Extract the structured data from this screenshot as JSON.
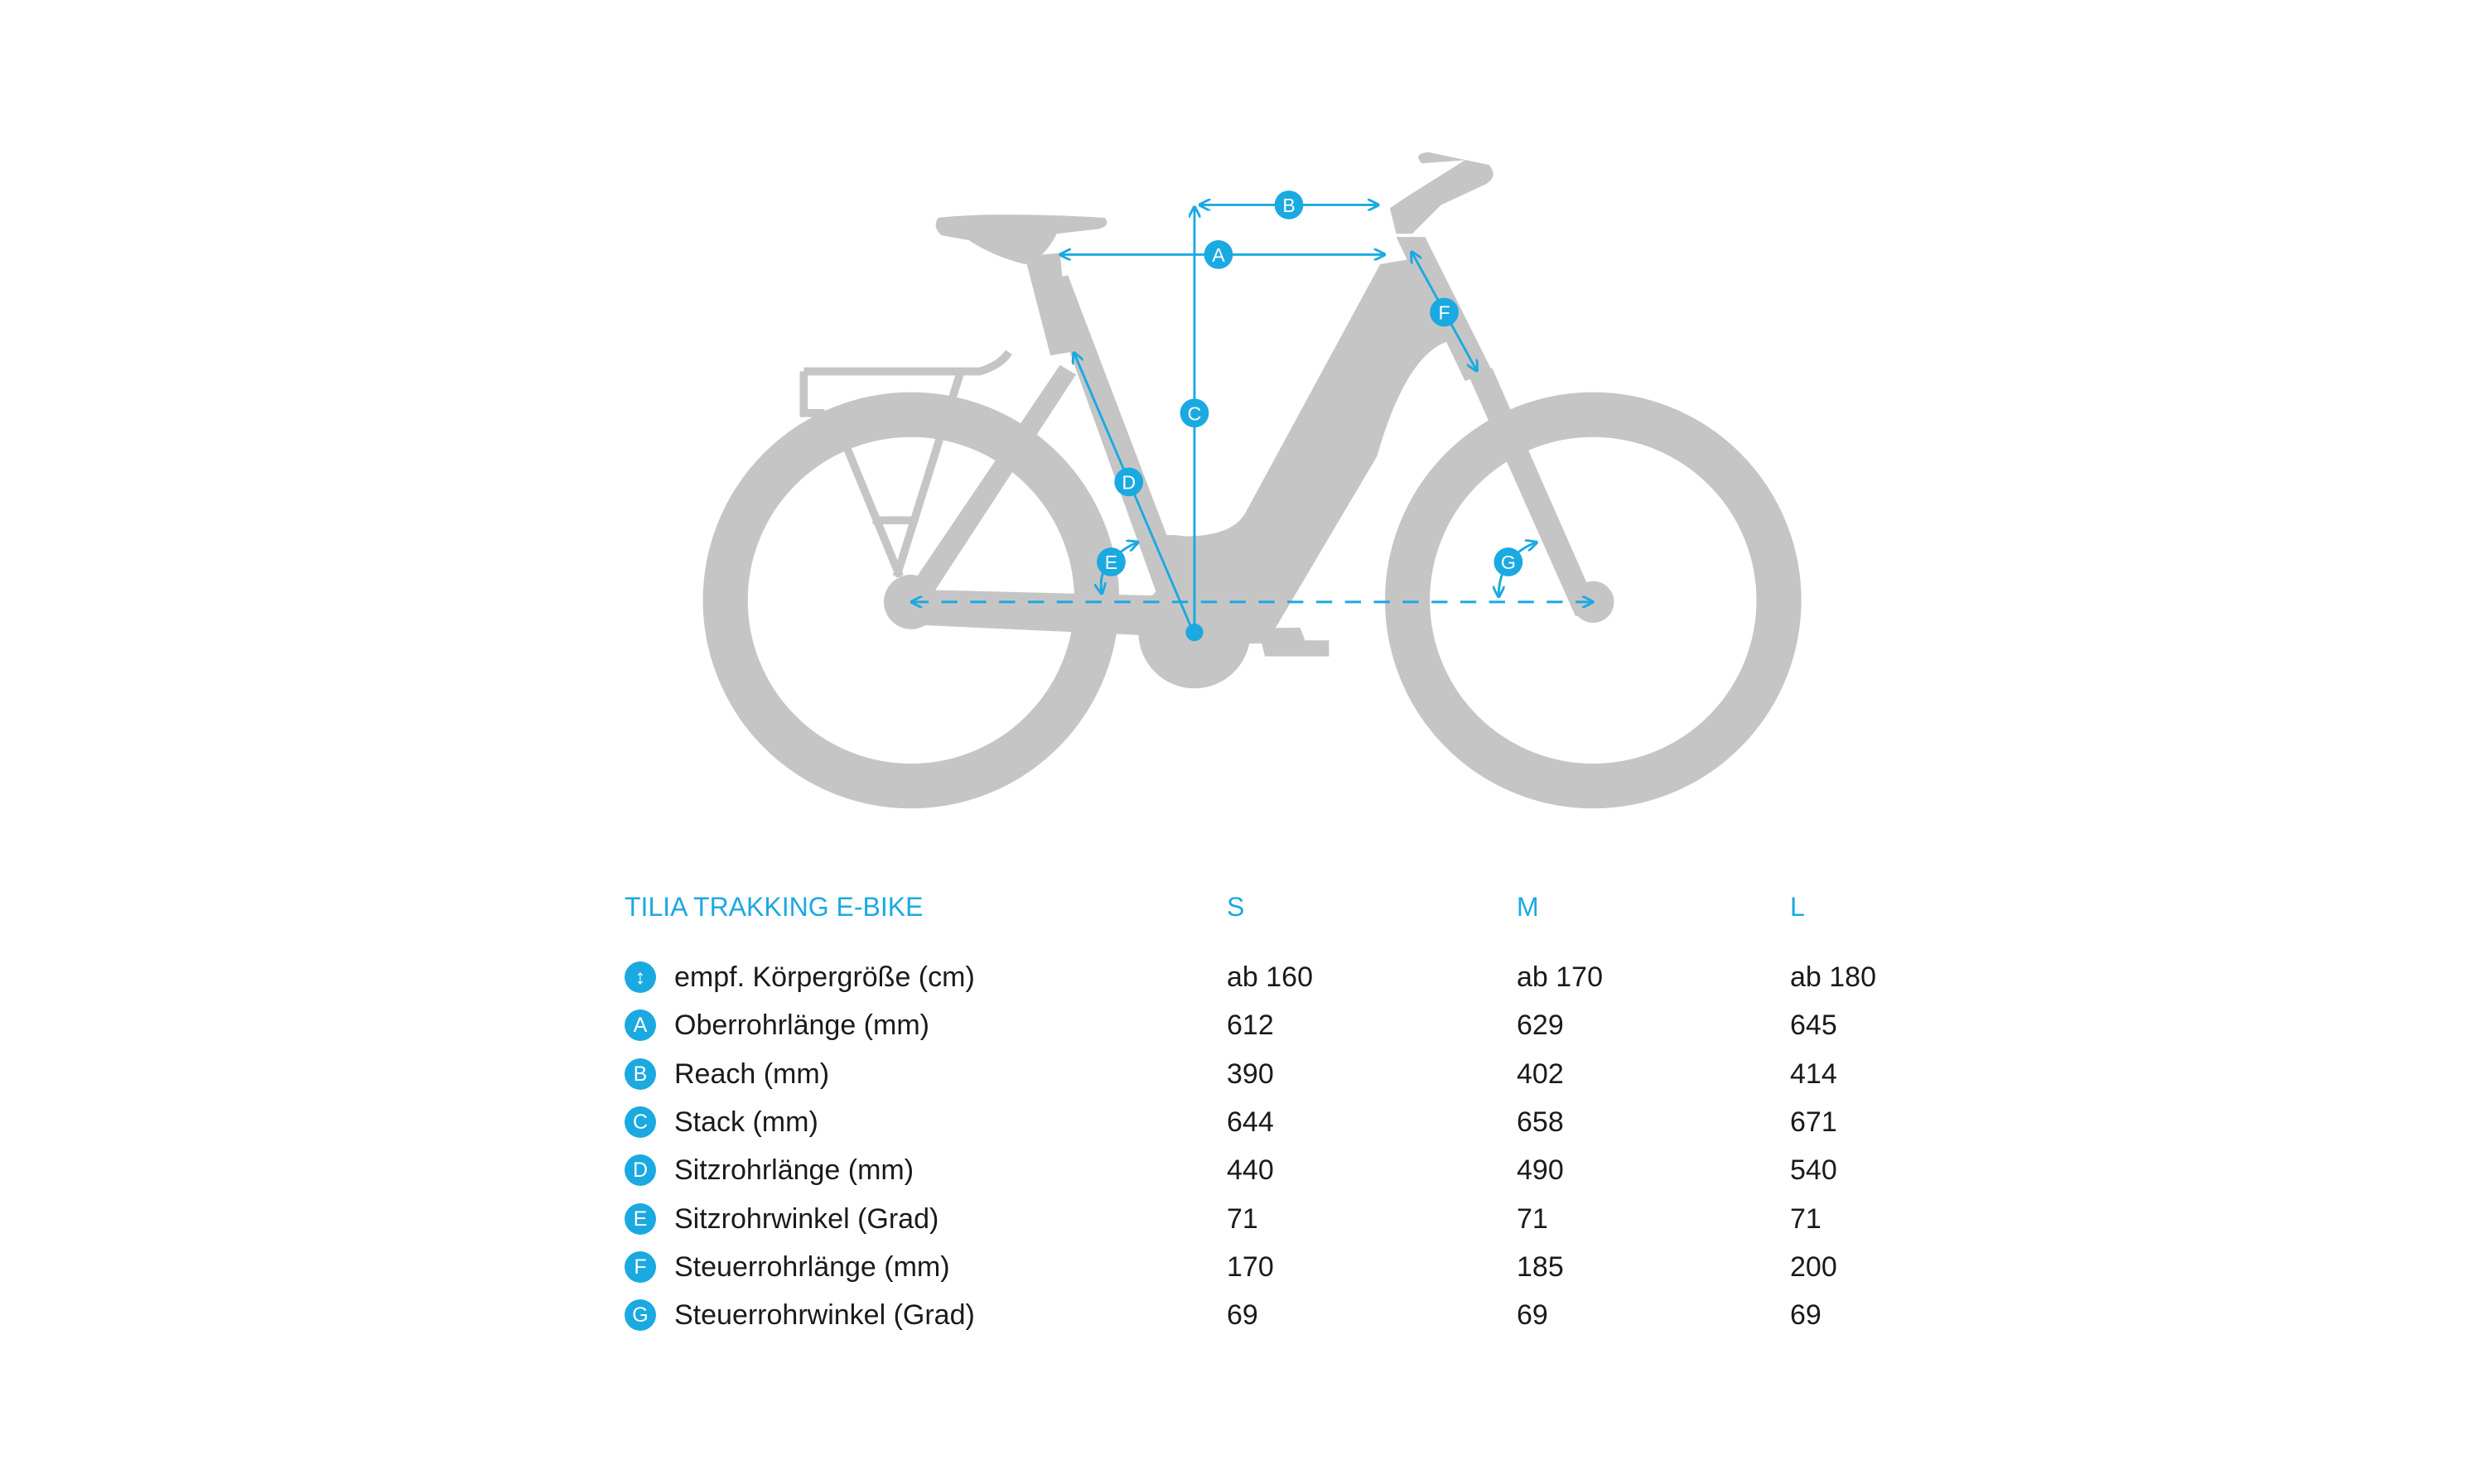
{
  "diagram": {
    "labels": [
      "A",
      "B",
      "C",
      "D",
      "E",
      "F",
      "G"
    ],
    "accent_color": "#1ba9e1",
    "frame_color": "#c6c5c5"
  },
  "table": {
    "title": "TILIA TRAKKING E-BIKE",
    "sizes": [
      "S",
      "M",
      "L"
    ],
    "rows": [
      {
        "badge": "↕",
        "icon": "height-arrow-icon",
        "label": "empf. Körpergröße (cm)",
        "values": [
          "ab 160",
          "ab 170",
          "ab 180"
        ]
      },
      {
        "badge": "A",
        "label": "Oberrohrlänge (mm)",
        "values": [
          "612",
          "629",
          "645"
        ]
      },
      {
        "badge": "B",
        "label": "Reach (mm)",
        "values": [
          "390",
          "402",
          "414"
        ]
      },
      {
        "badge": "C",
        "label": "Stack (mm)",
        "values": [
          "644",
          "658",
          "671"
        ]
      },
      {
        "badge": "D",
        "label": "Sitzrohrlänge (mm)",
        "values": [
          "440",
          "490",
          "540"
        ]
      },
      {
        "badge": "E",
        "label": "Sitzrohrwinkel (Grad)",
        "values": [
          "71",
          "71",
          "71"
        ]
      },
      {
        "badge": "F",
        "label": "Steuerrohrlänge (mm)",
        "values": [
          "170",
          "185",
          "200"
        ]
      },
      {
        "badge": "G",
        "label": "Steuerrohrwinkel (Grad)",
        "values": [
          "69",
          "69",
          "69"
        ]
      }
    ]
  }
}
